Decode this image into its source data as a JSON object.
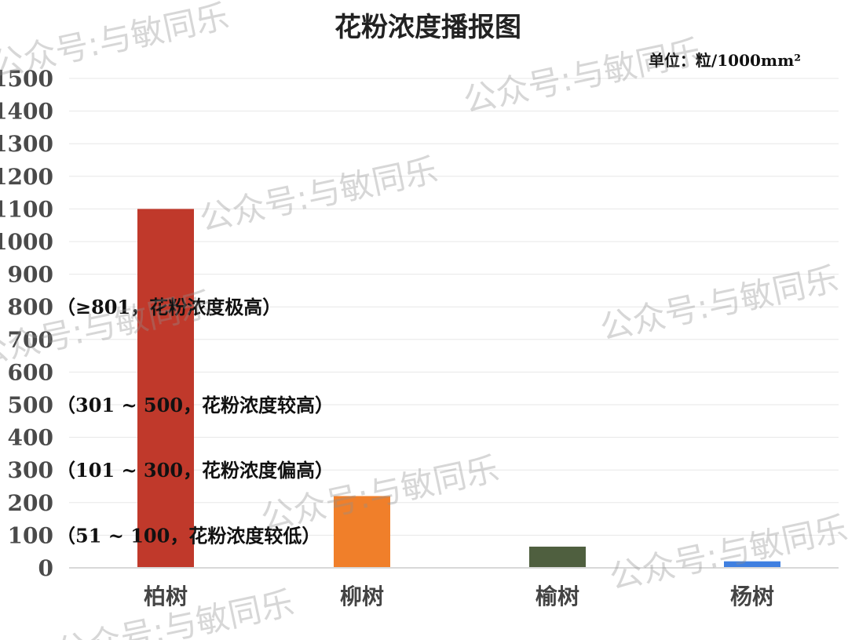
{
  "chart_data": {
    "type": "bar",
    "title": "花粉浓度播报图",
    "unit": "单位：粒/1000mm²",
    "categories": [
      "柏树",
      "柳树",
      "榆树",
      "杨树"
    ],
    "values": [
      1100,
      220,
      65,
      20
    ],
    "ylim": [
      0,
      1500
    ],
    "yticks": [
      0,
      100,
      200,
      300,
      400,
      500,
      600,
      700,
      800,
      900,
      1000,
      1100,
      1200,
      1300,
      1400,
      1500
    ],
    "grid": true,
    "legend": "none",
    "colors": [
      "#c0392b",
      "#f07f2a",
      "#4f5f3f",
      "#3f7fe0"
    ],
    "annotations": [
      {
        "value": 800,
        "text": "（≥801，花粉浓度极高）"
      },
      {
        "value": 500,
        "text": "（301 ~ 500，花粉浓度较高）"
      },
      {
        "value": 300,
        "text": "（101 ~ 300，花粉浓度偏高）"
      },
      {
        "value": 100,
        "text": "（51 ~ 100，花粉浓度较低）"
      }
    ]
  },
  "watermark_text": "公众号:与敏同乐"
}
